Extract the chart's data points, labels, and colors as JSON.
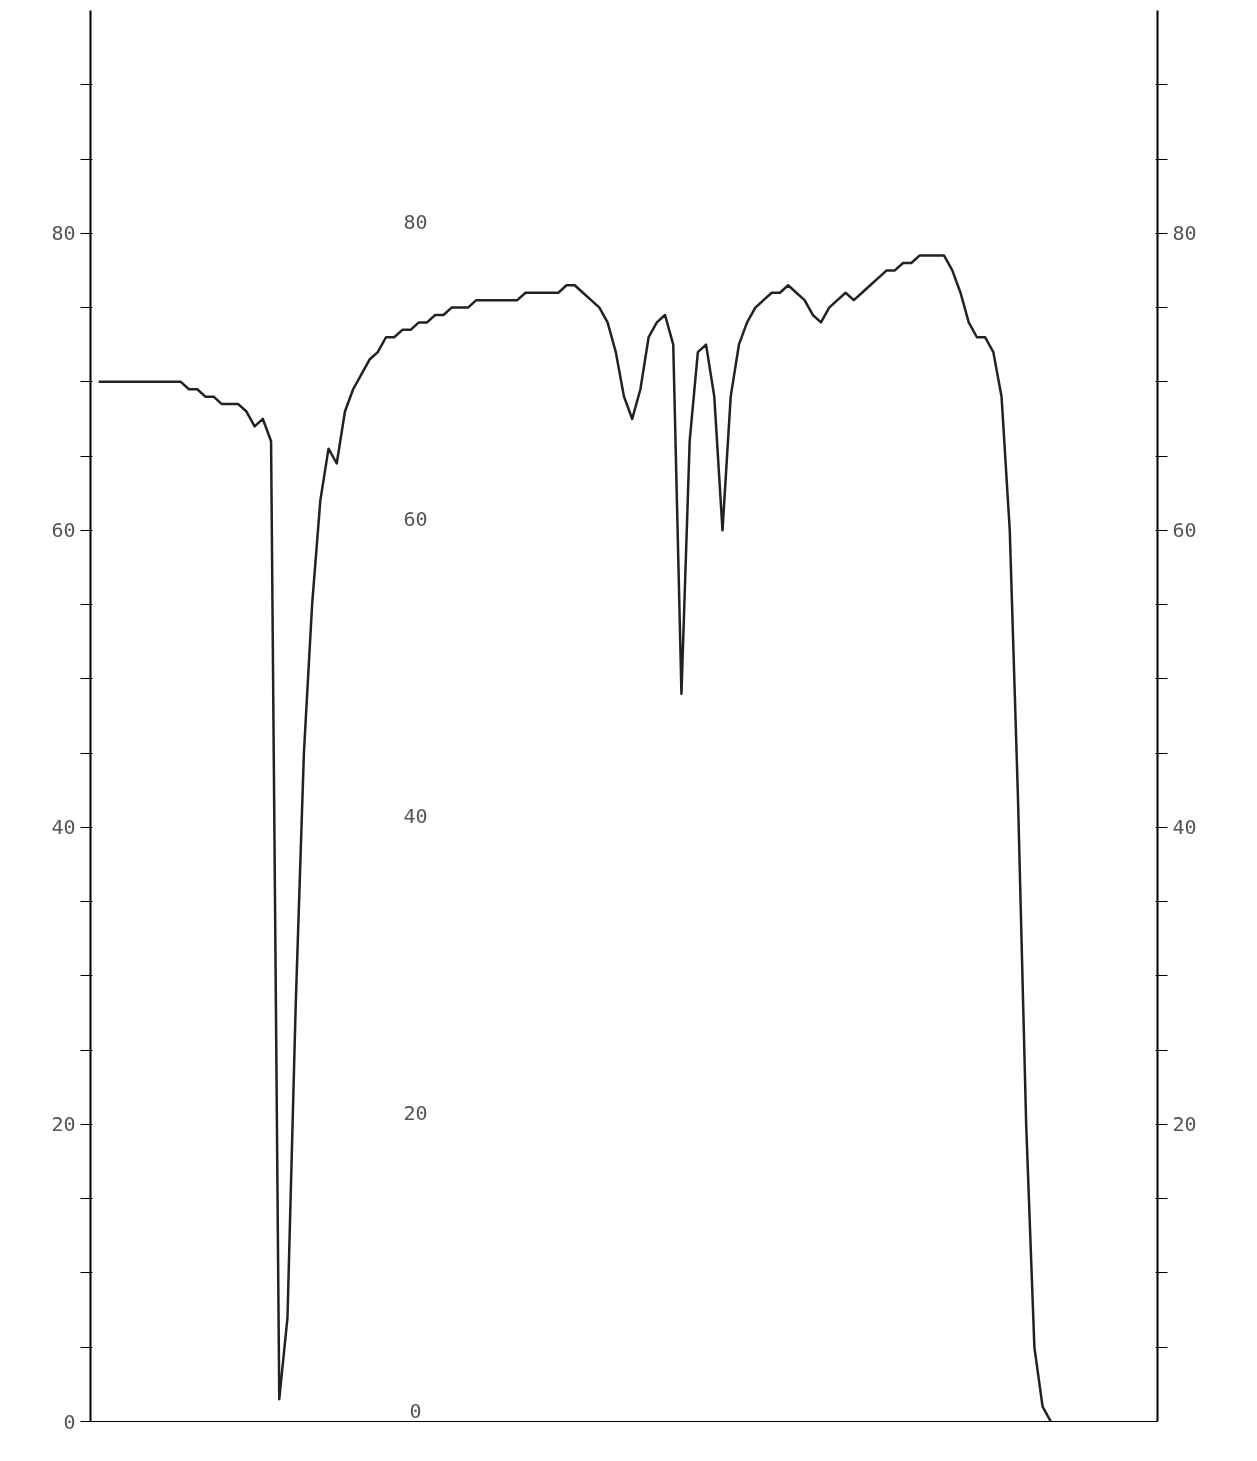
{
  "chart_data": {
    "type": "line",
    "categories": [
      null,
      null,
      null,
      null,
      null,
      null,
      null,
      null,
      null,
      null,
      null,
      null,
      null,
      null,
      null,
      null,
      null,
      null,
      null,
      null,
      null,
      null,
      null,
      null,
      null,
      null,
      null,
      null,
      null,
      null,
      null,
      null,
      null,
      null,
      null,
      null,
      null,
      null,
      null,
      null,
      null,
      null,
      null,
      null,
      null,
      null,
      null,
      null,
      null,
      null,
      null,
      null,
      null,
      null,
      null,
      null,
      null,
      null,
      null,
      null,
      null,
      null,
      null,
      null,
      null,
      null,
      null,
      null,
      null,
      null,
      null,
      null,
      null,
      null,
      null,
      null,
      null,
      null,
      null,
      null,
      null,
      null,
      null,
      null,
      null,
      null,
      null,
      null,
      null,
      null,
      null,
      null,
      null,
      null,
      null,
      null,
      null,
      null,
      null,
      null,
      null,
      null,
      null,
      null,
      null,
      null,
      null,
      null,
      null,
      null,
      null,
      null,
      null,
      null,
      null,
      null,
      null
    ],
    "series": [
      {
        "color": "#222222",
        "values": [
          70,
          70,
          70,
          70,
          70,
          70,
          70,
          70,
          70,
          70,
          70,
          69.5,
          69.5,
          69,
          69,
          68.5,
          68.5,
          68.5,
          68,
          67,
          67.5,
          66,
          1.5,
          7,
          28,
          45,
          55,
          62,
          65.5,
          64.5,
          68,
          69.5,
          70.5,
          71.5,
          72,
          73,
          73,
          73.5,
          73.5,
          74,
          74,
          74.5,
          74.5,
          75,
          75,
          75,
          75.5,
          75.5,
          75.5,
          75.5,
          75.5,
          75.5,
          76,
          76,
          76,
          76,
          76,
          76.5,
          76.5,
          76,
          75.5,
          75,
          74,
          72,
          69,
          67.5,
          69.5,
          73,
          74,
          74.5,
          72.5,
          49,
          66,
          72,
          72.5,
          69,
          60,
          69,
          72.5,
          74,
          75,
          75.5,
          76,
          76,
          76.5,
          76,
          75.5,
          74.5,
          74,
          75,
          75.5,
          76,
          75.5,
          76,
          76.5,
          77,
          77.5,
          77.5,
          78,
          78,
          78.5,
          78.5,
          78.5,
          78.5,
          77.5,
          76,
          74,
          73,
          73,
          72,
          69,
          60,
          42,
          20,
          5,
          1,
          0
        ]
      }
    ],
    "ylim": [
      0,
      95
    ],
    "yticks": [
      0,
      {
        "value": 5,
        "label": null
      },
      {
        "value": 10,
        "label": null
      },
      {
        "value": 15,
        "label": null
      },
      20,
      {
        "value": 25,
        "label": null
      },
      {
        "value": 30,
        "label": null
      },
      {
        "value": 35,
        "label": null
      },
      40,
      {
        "value": 45,
        "label": null
      },
      {
        "value": 50,
        "label": null
      },
      {
        "value": 55,
        "label": null
      },
      60,
      {
        "value": 65,
        "label": null
      },
      {
        "value": 70,
        "label": null
      },
      {
        "value": 75,
        "label": null
      },
      80,
      {
        "value": 85,
        "label": null
      },
      {
        "value": 90,
        "label": null
      }
    ],
    "y2lim": [
      0,
      95
    ],
    "y2ticks": [
      {
        "value": 5,
        "label": null
      },
      {
        "value": 10,
        "label": null
      },
      {
        "value": 15,
        "label": null
      },
      20,
      {
        "value": 25,
        "label": null
      },
      {
        "value": 30,
        "label": null
      },
      {
        "value": 35,
        "label": null
      },
      40,
      {
        "value": 45,
        "label": null
      },
      {
        "value": 50,
        "label": null
      },
      {
        "value": 55,
        "label": null
      },
      60,
      {
        "value": 65,
        "label": null
      },
      {
        "value": 70,
        "label": null
      },
      {
        "value": 75,
        "label": null
      },
      80,
      {
        "value": 85,
        "label": null
      },
      {
        "value": 90,
        "label": null
      }
    ],
    "annotations": [
      "80",
      "60",
      "40",
      "20",
      "0"
    ],
    "grid": false,
    "marker": "none",
    "line_style": "solid"
  }
}
